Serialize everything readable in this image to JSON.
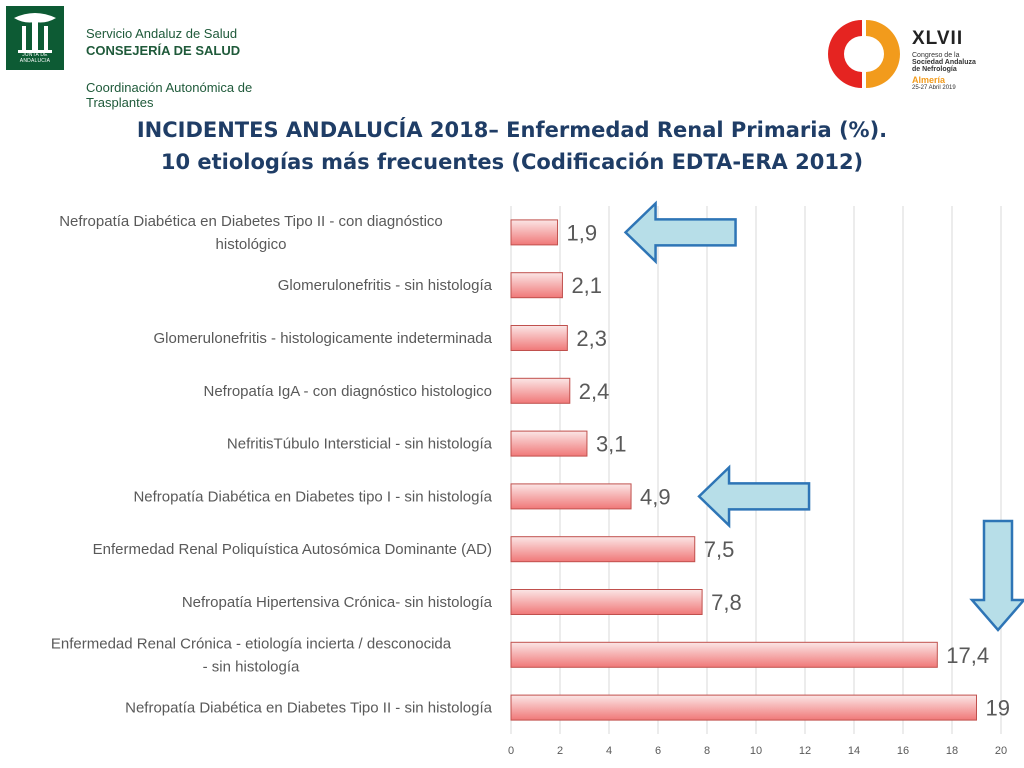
{
  "header": {
    "org_line1": "Servicio Andaluz de Salud",
    "org_line2": "CONSEJERÍA DE SALUD",
    "org_line3": "Coordinación Autonómica de Trasplantes",
    "seal_text": "JUNTA DE ANDALUCIA",
    "congress": {
      "number": "XLVII",
      "line1": "Congreso de la",
      "line2": "Sociedad Andaluza",
      "line3": "de Nefrología",
      "city": "Almería",
      "dates": "25-27 Abril 2019"
    }
  },
  "title_line1": "INCIDENTES ANDALUCÍA 2018– Enfermedad Renal Primaria (%).",
  "title_line2": "10 etiologías más frecuentes (Codificación EDTA-ERA 2012)",
  "colors": {
    "bar_top": "#fbe6e6",
    "bar_bottom": "#f07878",
    "bar_border": "#c0504d",
    "arrow_fill": "#b7dee8",
    "arrow_stroke": "#2e75b6",
    "grid": "#d9d9d9",
    "text": "#595959",
    "title": "#1f3d66"
  },
  "chart_data": {
    "type": "bar",
    "orientation": "horizontal",
    "categories": [
      [
        "Nefropatía Diabética en Diabetes Tipo II - con diagnóstico",
        "histológico"
      ],
      [
        "Glomerulonefritis - sin histología"
      ],
      [
        "Glomerulonefritis - histologicamente indeterminada"
      ],
      [
        "Nefropatía IgA - con diagnóstico histologico"
      ],
      [
        "NefritisTúbulo Intersticial - sin histología"
      ],
      [
        "Nefropatía Diabética en Diabetes tipo I - sin histología"
      ],
      [
        "Enfermedad Renal Poliquística Autosómica Dominante (AD)"
      ],
      [
        "Nefropatía Hipertensiva Crónica- sin histología"
      ],
      [
        "Enfermedad Renal Crónica - etiología incierta / desconocida",
        "- sin histología"
      ],
      [
        "Nefropatía Diabética en Diabetes Tipo II - sin histología"
      ]
    ],
    "values": [
      1.9,
      2.1,
      2.3,
      2.4,
      3.1,
      4.9,
      7.5,
      7.8,
      17.4,
      19
    ],
    "value_labels": [
      "1,9",
      "2,1",
      "2,3",
      "2,4",
      "3,1",
      "4,9",
      "7,5",
      "7,8",
      "17,4",
      "19"
    ],
    "xlim": [
      0,
      20
    ],
    "xticks": [
      0,
      2,
      4,
      6,
      8,
      10,
      12,
      14,
      16,
      18,
      20
    ],
    "grid": "vertical",
    "annotations": [
      {
        "type": "arrow-left",
        "target_index": 0
      },
      {
        "type": "arrow-left",
        "target_index": 5
      },
      {
        "type": "arrow-down",
        "target_index": 9
      }
    ]
  }
}
